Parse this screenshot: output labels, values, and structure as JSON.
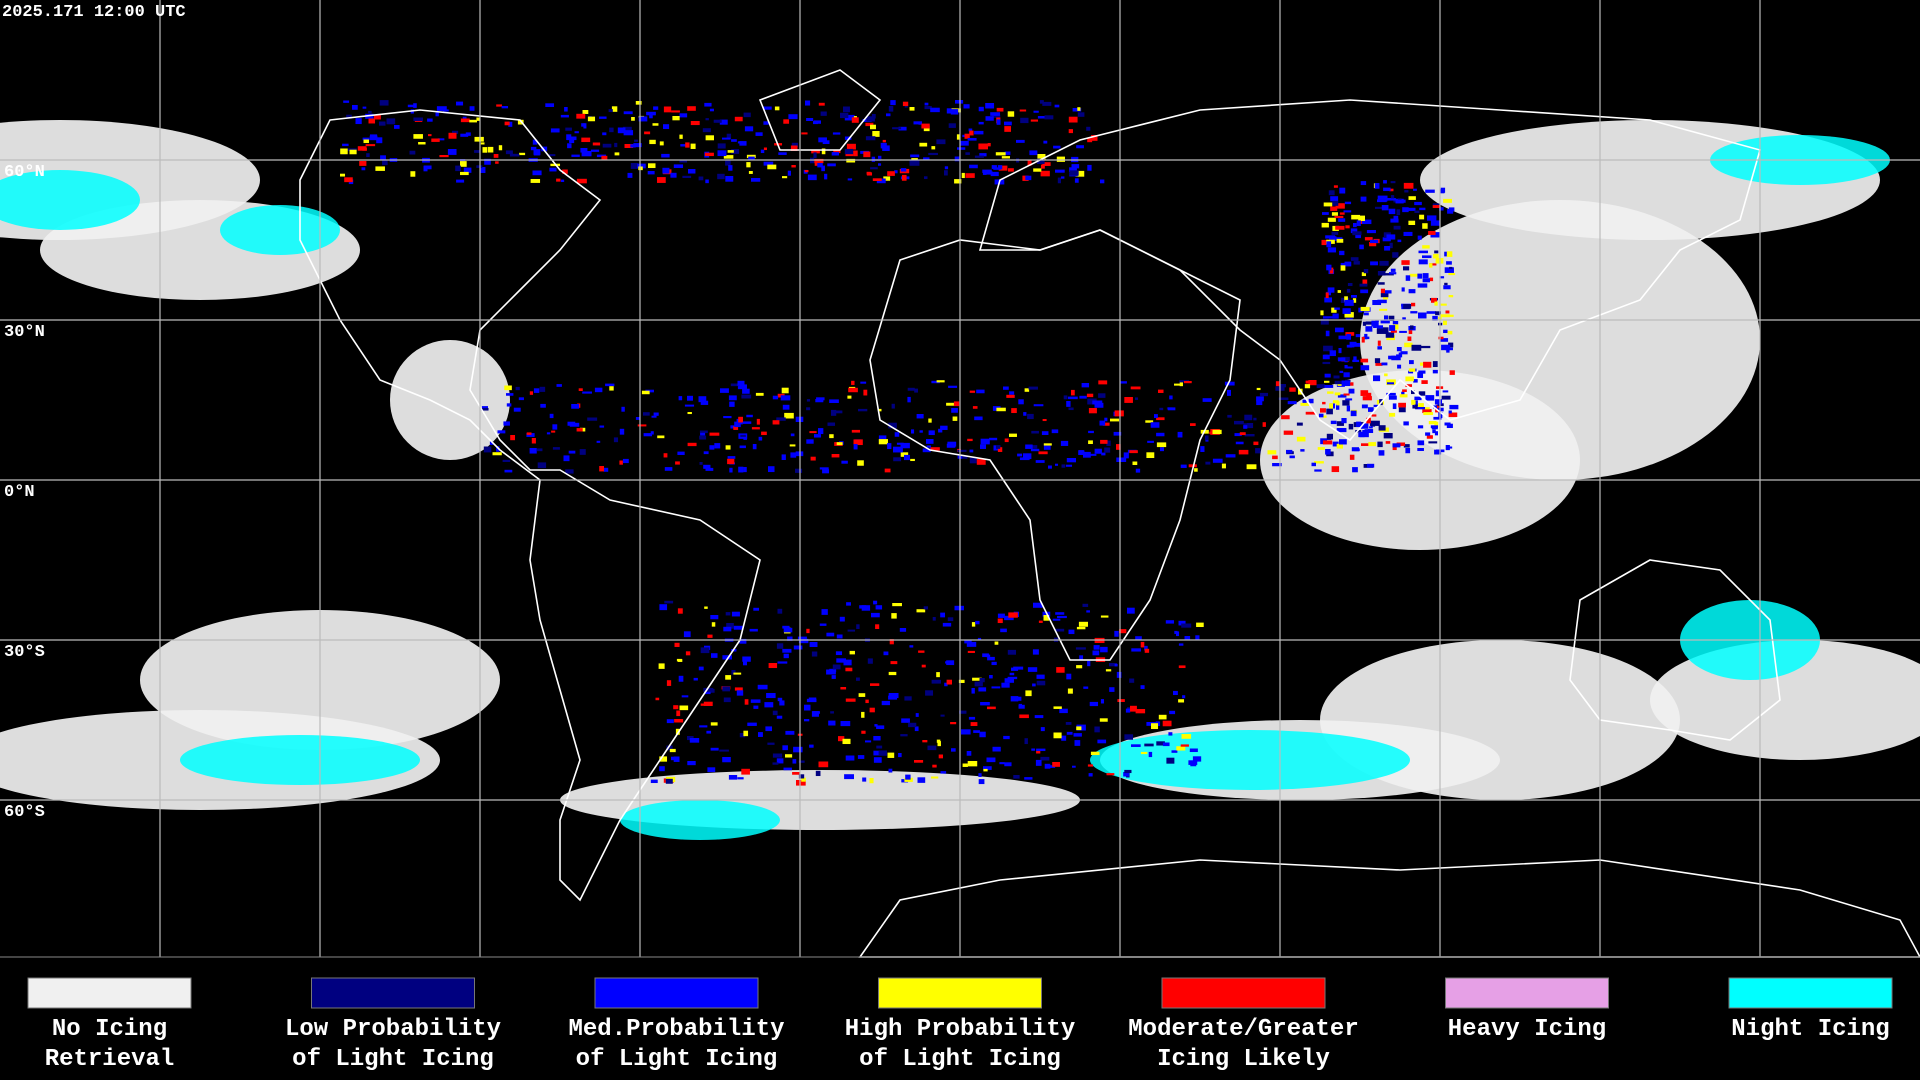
{
  "header": {
    "timestamp": "2025.171 12:00 UTC"
  },
  "map": {
    "latitude_labels": [
      "60°N",
      "30°N",
      "0°N",
      "30°S",
      "60°S"
    ]
  },
  "legend": [
    {
      "color": "#f0f0f0",
      "lines": [
        "No Icing",
        "Retrieval"
      ]
    },
    {
      "color": "#000080",
      "lines": [
        "Low Probability",
        "of Light Icing"
      ]
    },
    {
      "color": "#0000ff",
      "lines": [
        "Med.Probability",
        "of Light Icing"
      ]
    },
    {
      "color": "#ffff00",
      "lines": [
        "High Probability",
        "of Light Icing"
      ]
    },
    {
      "color": "#ff0000",
      "lines": [
        "Moderate/Greater",
        "Icing Likely"
      ]
    },
    {
      "color": "#e6a0e6",
      "lines": [
        "Heavy Icing"
      ]
    },
    {
      "color": "#00ffff",
      "lines": [
        "Night Icing"
      ]
    }
  ]
}
